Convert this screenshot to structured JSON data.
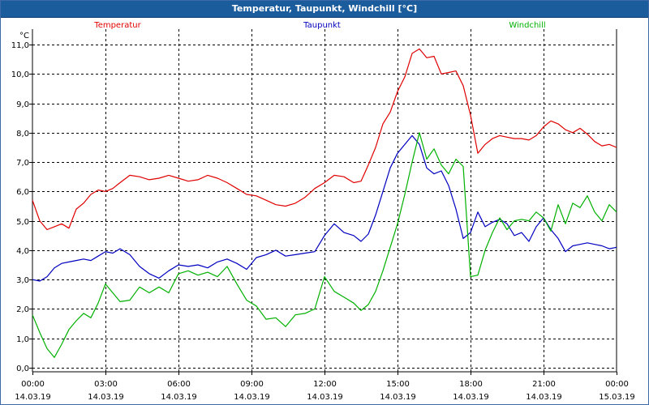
{
  "window": {
    "title": "Temperatur, Taupunkt, Windchill [°C]"
  },
  "chart_data": {
    "type": "line",
    "title": "Temperatur, Taupunkt, Windchill [°C]",
    "ylabel": "°C",
    "xlabel": "",
    "ylim": [
      0,
      11
    ],
    "y_ticks": [
      0.0,
      1.0,
      2.0,
      3.0,
      4.0,
      5.0,
      6.0,
      7.0,
      8.0,
      9.0,
      10.0,
      11.0
    ],
    "y_tick_labels": [
      "0,0",
      "1,0",
      "2,0",
      "3,0",
      "4,0",
      "5,0",
      "6,0",
      "7,0",
      "8,0",
      "9,0",
      "10,0",
      "11,0"
    ],
    "xlim": [
      0,
      24
    ],
    "x_ticks": [
      0,
      3,
      6,
      9,
      12,
      15,
      18,
      21,
      24
    ],
    "x_tick_labels": [
      {
        "time": "00:00",
        "date": "14.03.19"
      },
      {
        "time": "03:00",
        "date": "14.03.19"
      },
      {
        "time": "06:00",
        "date": "14.03.19"
      },
      {
        "time": "09:00",
        "date": "14.03.19"
      },
      {
        "time": "12:00",
        "date": "14.03.19"
      },
      {
        "time": "15:00",
        "date": "14.03.19"
      },
      {
        "time": "18:00",
        "date": "14.03.19"
      },
      {
        "time": "21:00",
        "date": "14.03.19"
      },
      {
        "time": "00:00",
        "date": "15.03.19"
      }
    ],
    "grid": true,
    "series": [
      {
        "name": "Temperatur",
        "color": "#e00000",
        "x": [
          0,
          0.3,
          0.6,
          0.9,
          1.2,
          1.5,
          1.8,
          2.1,
          2.4,
          2.7,
          3.0,
          3.3,
          3.6,
          4.0,
          4.4,
          4.8,
          5.2,
          5.6,
          6.0,
          6.4,
          6.8,
          7.2,
          7.6,
          8.0,
          8.4,
          8.8,
          9.2,
          9.6,
          10.0,
          10.4,
          10.8,
          11.2,
          11.6,
          12.0,
          12.4,
          12.8,
          13.2,
          13.5,
          13.8,
          14.1,
          14.4,
          14.7,
          15.0,
          15.3,
          15.6,
          15.9,
          16.2,
          16.5,
          16.8,
          17.1,
          17.4,
          17.7,
          18.0,
          18.3,
          18.6,
          18.9,
          19.2,
          19.5,
          19.8,
          20.1,
          20.4,
          20.7,
          21.0,
          21.3,
          21.6,
          21.9,
          22.2,
          22.5,
          22.8,
          23.1,
          23.4,
          23.7,
          24.0
        ],
        "values": [
          5.7,
          5.0,
          4.7,
          4.8,
          4.9,
          4.75,
          5.4,
          5.6,
          5.9,
          6.05,
          6.0,
          6.1,
          6.3,
          6.55,
          6.5,
          6.4,
          6.45,
          6.55,
          6.45,
          6.35,
          6.4,
          6.55,
          6.45,
          6.3,
          6.1,
          5.9,
          5.85,
          5.7,
          5.55,
          5.5,
          5.6,
          5.8,
          6.1,
          6.3,
          6.55,
          6.5,
          6.3,
          6.35,
          6.9,
          7.5,
          8.3,
          8.7,
          9.4,
          9.9,
          10.7,
          10.85,
          10.55,
          10.6,
          10.0,
          10.05,
          10.1,
          9.6,
          8.6,
          7.3,
          7.6,
          7.8,
          7.9,
          7.85,
          7.8,
          7.8,
          7.75,
          7.9,
          8.2,
          8.4,
          8.3,
          8.1,
          8.0,
          8.15,
          7.95,
          7.7,
          7.55,
          7.6,
          7.5
        ]
      },
      {
        "name": "Taupunkt",
        "color": "#0000c0",
        "x": [
          0,
          0.3,
          0.6,
          0.9,
          1.2,
          1.5,
          1.8,
          2.1,
          2.4,
          2.7,
          3.0,
          3.3,
          3.6,
          4.0,
          4.4,
          4.8,
          5.2,
          5.6,
          6.0,
          6.4,
          6.8,
          7.2,
          7.6,
          8.0,
          8.4,
          8.8,
          9.2,
          9.6,
          10.0,
          10.4,
          10.8,
          11.2,
          11.6,
          12.0,
          12.4,
          12.8,
          13.2,
          13.5,
          13.8,
          14.1,
          14.4,
          14.7,
          15.0,
          15.3,
          15.6,
          15.9,
          16.2,
          16.5,
          16.8,
          17.1,
          17.4,
          17.7,
          18.0,
          18.3,
          18.6,
          18.9,
          19.2,
          19.5,
          19.8,
          20.1,
          20.4,
          20.7,
          21.0,
          21.3,
          21.6,
          21.9,
          22.2,
          22.5,
          22.8,
          23.1,
          23.4,
          23.7,
          24.0
        ],
        "values": [
          3.0,
          2.95,
          3.1,
          3.4,
          3.55,
          3.6,
          3.65,
          3.7,
          3.65,
          3.8,
          3.95,
          3.9,
          4.05,
          3.85,
          3.45,
          3.2,
          3.05,
          3.3,
          3.5,
          3.45,
          3.5,
          3.4,
          3.6,
          3.7,
          3.55,
          3.35,
          3.75,
          3.85,
          4.0,
          3.8,
          3.85,
          3.9,
          3.95,
          4.5,
          4.9,
          4.6,
          4.5,
          4.3,
          4.55,
          5.2,
          6.0,
          6.8,
          7.3,
          7.6,
          7.9,
          7.6,
          6.8,
          6.6,
          6.7,
          6.2,
          5.4,
          4.4,
          4.6,
          5.3,
          4.8,
          4.95,
          5.05,
          4.9,
          4.5,
          4.6,
          4.3,
          4.8,
          5.1,
          4.7,
          4.4,
          3.95,
          4.15,
          4.2,
          4.25,
          4.2,
          4.15,
          4.05,
          4.1
        ]
      },
      {
        "name": "Windchill",
        "color": "#00b000",
        "x": [
          0,
          0.3,
          0.6,
          0.9,
          1.2,
          1.5,
          1.8,
          2.1,
          2.4,
          2.7,
          3.0,
          3.3,
          3.6,
          4.0,
          4.4,
          4.8,
          5.2,
          5.6,
          6.0,
          6.4,
          6.8,
          7.2,
          7.6,
          8.0,
          8.4,
          8.8,
          9.2,
          9.6,
          10.0,
          10.4,
          10.8,
          11.2,
          11.6,
          12.0,
          12.4,
          12.8,
          13.2,
          13.5,
          13.8,
          14.1,
          14.4,
          14.7,
          15.0,
          15.3,
          15.6,
          15.9,
          16.2,
          16.5,
          16.8,
          17.1,
          17.4,
          17.7,
          18.0,
          18.3,
          18.6,
          18.9,
          19.2,
          19.5,
          19.8,
          20.1,
          20.4,
          20.7,
          21.0,
          21.3,
          21.6,
          21.9,
          22.2,
          22.5,
          22.8,
          23.1,
          23.4,
          23.7,
          24.0
        ],
        "values": [
          1.8,
          1.2,
          0.65,
          0.35,
          0.8,
          1.3,
          1.6,
          1.85,
          1.7,
          2.2,
          2.85,
          2.55,
          2.25,
          2.3,
          2.75,
          2.55,
          2.75,
          2.55,
          3.2,
          3.3,
          3.15,
          3.25,
          3.1,
          3.45,
          2.85,
          2.3,
          2.1,
          1.65,
          1.7,
          1.4,
          1.8,
          1.85,
          2.0,
          3.1,
          2.6,
          2.4,
          2.2,
          1.95,
          2.15,
          2.6,
          3.3,
          4.1,
          4.9,
          5.9,
          7.0,
          8.0,
          7.1,
          7.45,
          6.9,
          6.6,
          7.1,
          6.85,
          3.1,
          3.15,
          4.0,
          4.6,
          5.1,
          4.7,
          5.0,
          5.05,
          5.0,
          5.3,
          5.1,
          4.65,
          5.55,
          4.9,
          5.6,
          5.45,
          5.85,
          5.3,
          5.0,
          5.55,
          5.3
        ]
      }
    ],
    "legend_position": "top, above plot (one label per series)"
  }
}
